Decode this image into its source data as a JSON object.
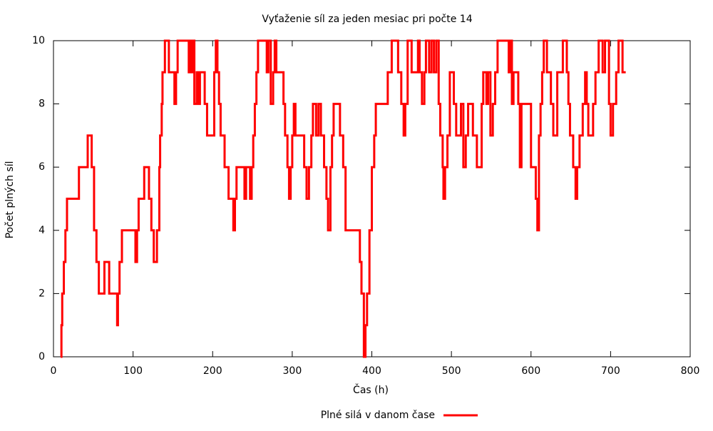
{
  "chart_data": {
    "type": "line",
    "step": "post",
    "title": "Vyťaženie síl za jeden mesiac pri počte 14",
    "xlabel": "Čas (h)",
    "ylabel": "Počet plných síl",
    "xlim": [
      0,
      800
    ],
    "xticks": [
      0,
      100,
      200,
      300,
      400,
      500,
      600,
      700,
      800
    ],
    "ylim": [
      0,
      10
    ],
    "yticks": [
      0,
      2,
      4,
      6,
      8,
      10
    ],
    "legend": "bottom",
    "x": [
      9,
      10,
      11,
      13,
      15,
      17,
      32,
      43,
      48,
      51,
      54,
      57,
      64,
      70,
      80,
      81,
      83,
      86,
      103,
      105,
      107,
      114,
      120,
      123,
      126,
      130,
      133,
      134,
      136,
      137,
      140,
      145,
      152,
      154,
      156,
      170,
      172,
      174,
      176,
      177,
      180,
      182,
      184,
      190,
      193,
      202,
      204,
      206,
      208,
      210,
      215,
      220,
      226,
      228,
      230,
      240,
      242,
      247,
      249,
      251,
      253,
      255,
      257,
      268,
      270,
      273,
      276,
      278,
      280,
      289,
      291,
      294,
      296,
      298,
      300,
      302,
      304,
      315,
      318,
      321,
      324,
      326,
      330,
      333,
      336,
      340,
      343,
      345,
      348,
      350,
      352,
      360,
      364,
      367,
      385,
      387,
      390,
      392,
      394,
      397,
      400,
      403,
      405,
      420,
      425,
      433,
      437,
      440,
      442,
      445,
      450,
      458,
      460,
      463,
      466,
      468,
      472,
      475,
      478,
      481,
      484,
      486,
      489,
      490,
      492,
      495,
      498,
      503,
      506,
      512,
      515,
      518,
      521,
      527,
      532,
      538,
      540,
      544,
      546,
      549,
      552,
      555,
      558,
      572,
      574,
      576,
      578,
      584,
      586,
      588,
      600,
      606,
      608,
      610,
      612,
      614,
      616,
      620,
      625,
      628,
      633,
      640,
      645,
      647,
      649,
      653,
      656,
      658,
      661,
      665,
      668,
      670,
      672,
      678,
      681,
      685,
      690,
      693,
      698,
      700,
      703,
      707,
      710,
      715,
      719
    ],
    "series": [
      {
        "name": "Plné silá v danom čase",
        "color": "#ff0000",
        "values": [
          0,
          1,
          2,
          3,
          4,
          5,
          6,
          7,
          6,
          4,
          3,
          2,
          3,
          2,
          1,
          2,
          3,
          4,
          3,
          4,
          5,
          6,
          5,
          4,
          3,
          4,
          6,
          7,
          8,
          9,
          10,
          9,
          8,
          9,
          10,
          9,
          10,
          9,
          10,
          8,
          9,
          8,
          9,
          8,
          7,
          9,
          10,
          9,
          8,
          7,
          6,
          5,
          4,
          5,
          6,
          5,
          6,
          5,
          6,
          7,
          8,
          9,
          10,
          9,
          10,
          8,
          9,
          10,
          9,
          8,
          7,
          6,
          5,
          6,
          7,
          8,
          7,
          6,
          5,
          6,
          7,
          8,
          7,
          8,
          7,
          6,
          5,
          4,
          6,
          7,
          8,
          7,
          6,
          4,
          3,
          2,
          0,
          1,
          2,
          4,
          6,
          7,
          8,
          9,
          10,
          9,
          8,
          7,
          8,
          10,
          9,
          10,
          9,
          8,
          9,
          10,
          9,
          10,
          9,
          10,
          8,
          7,
          6,
          5,
          6,
          7,
          9,
          8,
          7,
          8,
          6,
          7,
          8,
          7,
          6,
          8,
          9,
          8,
          9,
          7,
          8,
          9,
          10,
          9,
          10,
          8,
          9,
          8,
          6,
          8,
          6,
          5,
          4,
          7,
          8,
          9,
          10,
          9,
          8,
          7,
          9,
          10,
          9,
          8,
          7,
          6,
          5,
          6,
          7,
          8,
          9,
          8,
          7,
          8,
          9,
          10,
          9,
          10,
          8,
          7,
          8,
          9,
          10,
          9,
          9
        ]
      }
    ]
  }
}
